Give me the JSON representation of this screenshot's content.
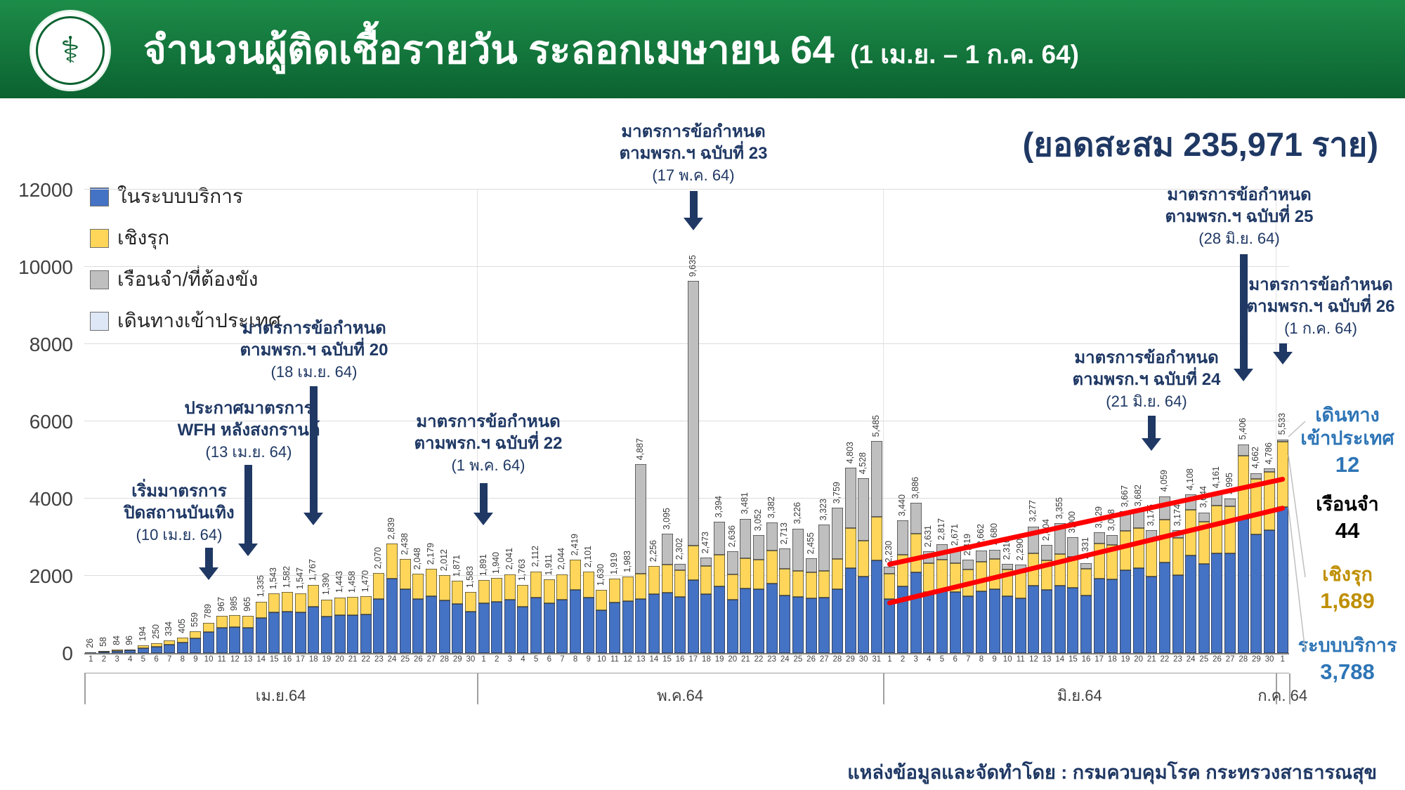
{
  "header": {
    "title": "จำนวนผู้ติดเชื้อรายวัน ระลอกเมษายน 64",
    "subtitle": "(1 เม.ย. – 1 ก.ค. 64)"
  },
  "cumulative": "(ยอดสะสม 235,971 ราย)",
  "legend": [
    {
      "label": "ในระบบบริการ",
      "color": "#4472C4"
    },
    {
      "label": "เชิงรุก",
      "color": "#FFD65A"
    },
    {
      "label": "เรือนจำ/ที่ต้องขัง",
      "color": "#BFBFBF"
    },
    {
      "label": "เดินทางเข้าประเทศ",
      "color": "#DEE7F5"
    }
  ],
  "annotations": [
    {
      "lines": [
        "เริ่มมาตรการ",
        "ปิดสถานบันเทิง",
        "(10 เม.ย. 64)"
      ]
    },
    {
      "lines": [
        "ประกาศมาตรการ",
        "WFH หลังสงกรานต์",
        "(13 เม.ย. 64)"
      ]
    },
    {
      "lines": [
        "มาตรการข้อกำหนด",
        "ตามพรก.ฯ ฉบับที่ 20",
        "(18 เม.ย. 64)"
      ]
    },
    {
      "lines": [
        "มาตรการข้อกำหนด",
        "ตามพรก.ฯ ฉบับที่ 22",
        "(1 พ.ค. 64)"
      ]
    },
    {
      "lines": [
        "มาตรการข้อกำหนด",
        "ตามพรก.ฯ ฉบับที่ 23",
        "(17 พ.ค. 64)"
      ]
    },
    {
      "lines": [
        "มาตรการข้อกำหนด",
        "ตามพรก.ฯ ฉบับที่ 24",
        "(21 มิ.ย. 64)"
      ]
    },
    {
      "lines": [
        "มาตรการข้อกำหนด",
        "ตามพรก.ฯ ฉบับที่ 25",
        "(28 มิ.ย. 64)"
      ]
    },
    {
      "lines": [
        "มาตรการข้อกำหนด",
        "ตามพรก.ฯ ฉบับที่ 26",
        "(1 ก.ค. 64)"
      ]
    }
  ],
  "side_labels": [
    {
      "lines": [
        "เดินทาง",
        "เข้าประเทศ"
      ],
      "value": "12",
      "color": "#2E75B6"
    },
    {
      "lines": [
        "เรือนจำ"
      ],
      "value": "44",
      "color": "#000000"
    },
    {
      "lines": [
        "เชิงรุก"
      ],
      "value": "1,689",
      "color": "#BF8F00"
    },
    {
      "lines": [
        "ระบบบริการ"
      ],
      "value": "3,788",
      "color": "#2E75B6"
    }
  ],
  "footer": "แหล่งข้อมูลและจัดทำโดย : กรมควบคุมโรค กระทรวงสาธารณสุข",
  "chart_data": {
    "type": "bar",
    "stacked": true,
    "title": "จำนวนผู้ติดเชื้อรายวัน ระลอกเมษายน 64 (1 เม.ย. – 1 ก.ค. 64)",
    "ylabel": "",
    "xlabel": "",
    "ylim": [
      0,
      12000
    ],
    "yticks": [
      0,
      2000,
      4000,
      6000,
      8000,
      10000,
      12000
    ],
    "grid": "horizontal",
    "legend_position": "top-left",
    "months": [
      {
        "label": "เม.ย.64",
        "days": 30
      },
      {
        "label": "พ.ค.64",
        "days": 31
      },
      {
        "label": "มิ.ย.64",
        "days": 30
      },
      {
        "label": "ก.ค. 64",
        "days": 1
      }
    ],
    "series_names": [
      "ในระบบบริการ",
      "เชิงรุก",
      "เรือนจำ/ที่ต้องขัง",
      "เดินทางเข้าประเทศ"
    ],
    "totals": [
      26,
      58,
      84,
      96,
      194,
      250,
      334,
      405,
      559,
      789,
      967,
      985,
      965,
      1335,
      1543,
      1582,
      1547,
      1767,
      1390,
      1443,
      1458,
      1470,
      2070,
      2839,
      2438,
      2048,
      2179,
      2012,
      1871,
      1583,
      1891,
      1940,
      2041,
      1763,
      2112,
      1911,
      2044,
      2419,
      2101,
      1630,
      1919,
      1983,
      4887,
      2256,
      3095,
      2302,
      9635,
      2473,
      3394,
      2636,
      3481,
      3052,
      3382,
      2713,
      3226,
      2455,
      3323,
      3759,
      4803,
      4528,
      5485,
      2230,
      3440,
      3886,
      2631,
      2817,
      2671,
      2419,
      2662,
      2680,
      2310,
      2290,
      3277,
      2804,
      3355,
      3000,
      2331,
      3129,
      3058,
      3667,
      3682,
      3175,
      4059,
      3174,
      4108,
      3644,
      4161,
      3995,
      5406,
      4662,
      4786,
      5533
    ],
    "prison_component_est": [
      0,
      0,
      0,
      0,
      0,
      0,
      0,
      0,
      0,
      0,
      0,
      0,
      0,
      0,
      0,
      0,
      0,
      0,
      0,
      0,
      0,
      0,
      0,
      0,
      0,
      0,
      0,
      0,
      0,
      0,
      0,
      0,
      0,
      0,
      0,
      0,
      0,
      0,
      0,
      0,
      0,
      0,
      2835,
      0,
      800,
      150,
      6853,
      220,
      850,
      600,
      1020,
      630,
      730,
      530,
      1100,
      370,
      1200,
      1320,
      1570,
      1620,
      1950,
      180,
      900,
      800,
      300,
      400,
      350,
      250,
      300,
      250,
      150,
      200,
      700,
      400,
      800,
      500,
      150,
      300,
      250,
      500,
      450,
      250,
      600,
      200,
      400,
      250,
      350,
      200,
      300,
      150,
      100,
      44
    ],
    "service_frac_est": 0.68,
    "last_day_breakdown": {
      "ในระบบบริการ": 3788,
      "เชิงรุก": 1689,
      "เรือนจำ": 44,
      "เดินทางเข้าประเทศ": 12
    },
    "trend_lines": [
      {
        "from_day": 61,
        "from_value": 2300,
        "to_day": 91,
        "to_value": 4500
      },
      {
        "from_day": 61,
        "from_value": 1300,
        "to_day": 91,
        "to_value": 3750
      }
    ]
  }
}
